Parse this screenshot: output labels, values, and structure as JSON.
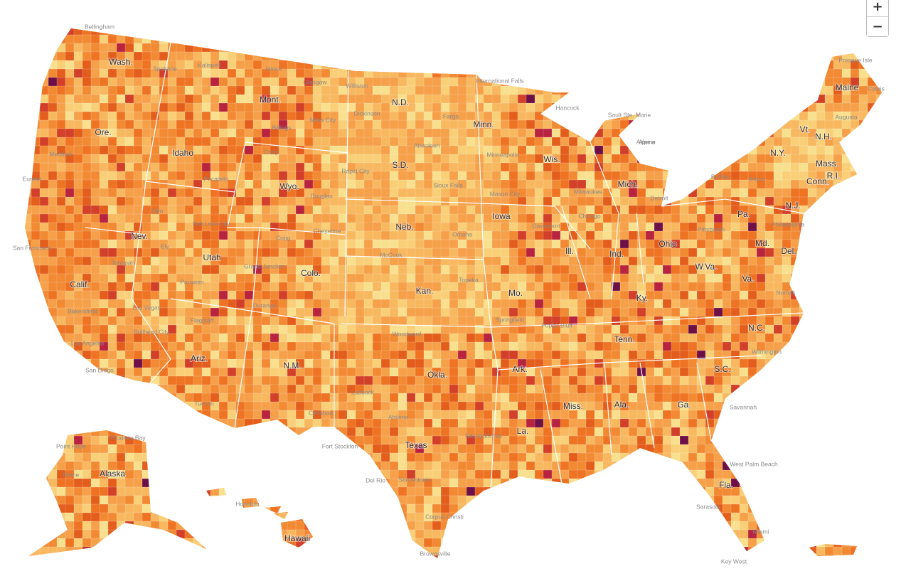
{
  "controls": {
    "zoom_in": "+",
    "zoom_out": "−"
  },
  "map": {
    "state_labels": [
      "Wash.",
      "Ore.",
      "Idaho",
      "Mont.",
      "Wyo.",
      "Nev.",
      "Utah",
      "Calif.",
      "Ariz.",
      "Colo.",
      "N.M.",
      "N.D.",
      "S.D.",
      "Neb.",
      "Kan.",
      "Okla.",
      "Texas",
      "Minn.",
      "Iowa",
      "Mo.",
      "Ark.",
      "La.",
      "Wis.",
      "Ill.",
      "Mich.",
      "Ind.",
      "Ohio",
      "Ky.",
      "Tenn.",
      "Miss.",
      "Ala.",
      "Ga.",
      "Fla.",
      "S.C.",
      "N.C.",
      "Va.",
      "W.Va.",
      "Md.",
      "Del.",
      "N.J.",
      "Pa.",
      "N.Y.",
      "Vt.",
      "N.H.",
      "Maine",
      "Mass.",
      "Conn.",
      "R.I.",
      "Alaska",
      "Hawaii"
    ],
    "city_labels": [
      "Bellingham",
      "Spokane",
      "Kalispell",
      "Havre",
      "Glasgow",
      "Williston",
      "International Falls",
      "Hancock",
      "Sault Ste. Marie",
      "Presque Isle",
      "Calais",
      "Augusta",
      "Alpena",
      "Dickinson",
      "Fargo",
      "Aberdeen",
      "Rapid City",
      "Sioux Falls",
      "Minneapolis",
      "Milwaukee",
      "Detroit",
      "Buffalo",
      "Ithaca",
      "Mason City",
      "Omaha",
      "Chicago",
      "Davenport",
      "Pittsburgh",
      "Philadelphia",
      "Cody",
      "Douglas",
      "Billings",
      "Miles City",
      "Pocatello",
      "Elko",
      "Ely",
      "Tonopah",
      "Salt Lake City",
      "Grand Junction",
      "Durango",
      "Cheyenne",
      "Craig",
      "Parowan",
      "Las Vegas",
      "Bullhead City",
      "Bakersfield",
      "Los Angeles",
      "San Diego",
      "San Francisco",
      "Eureka",
      "Medford",
      "Flagstaff",
      "Tucson",
      "McCook",
      "Topeka",
      "Springfield",
      "Poplar Bluff",
      "Woodward",
      "Lubbock",
      "Abilene",
      "Carlsbad",
      "Fort Stockton",
      "Del Rio",
      "San Antonio",
      "Corpus Christi",
      "Brownsville",
      "Nacogdoches",
      "Savannah",
      "Wilmington",
      "West Palm Beach",
      "Sarasota",
      "Miami",
      "Key West",
      "Nome",
      "Point Hope",
      "Prudhoe Bay",
      "Honolulu",
      "Norfolk",
      "Alpine"
    ]
  }
}
